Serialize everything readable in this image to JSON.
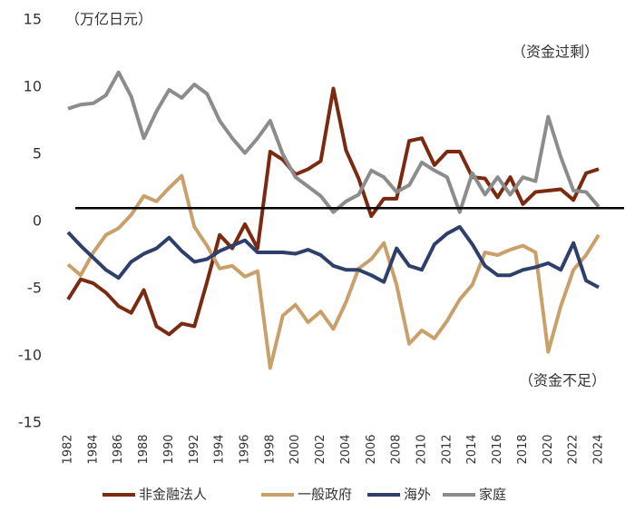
{
  "chart_data": {
    "type": "line",
    "unit_label": "（万亿日元）",
    "annotations": [
      "（资金过剩）",
      "（资金不足）"
    ],
    "x": [
      1982,
      1983,
      1984,
      1985,
      1986,
      1987,
      1988,
      1989,
      1990,
      1991,
      1992,
      1993,
      1994,
      1995,
      1996,
      1997,
      1998,
      1999,
      2000,
      2001,
      2002,
      2003,
      2004,
      2005,
      2006,
      2007,
      2008,
      2009,
      2010,
      2011,
      2012,
      2013,
      2014,
      2015,
      2016,
      2017,
      2018,
      2019,
      2020,
      2021,
      2022,
      2023,
      2024
    ],
    "xlim": [
      1982,
      2024
    ],
    "xticks": [
      1982,
      1984,
      1986,
      1988,
      1990,
      1992,
      1994,
      1996,
      1998,
      2000,
      2002,
      2004,
      2006,
      2008,
      2010,
      2012,
      2014,
      2016,
      2018,
      2020,
      2022,
      2024
    ],
    "ylim": [
      -15,
      15
    ],
    "yticks": [
      -15,
      -10,
      -5,
      0,
      5,
      10,
      15
    ],
    "reference_line": 1,
    "reference_color": "#000000",
    "grid": false,
    "legend": "bottom",
    "series": [
      {
        "name": "非金融法人",
        "color": "#7b2a12",
        "values": [
          -5.8,
          -4.3,
          -4.6,
          -5.3,
          -6.3,
          -6.8,
          -5.1,
          -7.8,
          -8.4,
          -7.6,
          -7.8,
          -4.5,
          -1.0,
          -2.0,
          -0.2,
          -2.0,
          5.2,
          4.6,
          3.5,
          3.9,
          4.5,
          9.9,
          5.3,
          3.2,
          0.4,
          1.7,
          1.7,
          6.0,
          6.2,
          4.2,
          5.2,
          5.2,
          3.3,
          3.2,
          1.8,
          3.3,
          1.3,
          2.2,
          2.3,
          2.4,
          1.6,
          3.6,
          3.9
        ]
      },
      {
        "name": "一般政府",
        "color": "#c9a06a",
        "values": [
          -3.2,
          -4.0,
          -2.3,
          -1.0,
          -0.5,
          0.5,
          1.9,
          1.5,
          2.5,
          3.4,
          -0.4,
          -1.8,
          -3.5,
          -3.3,
          -4.1,
          -3.7,
          -10.9,
          -7.0,
          -6.2,
          -7.5,
          -6.7,
          -8.0,
          -6.0,
          -3.5,
          -2.8,
          -1.6,
          -4.7,
          -9.1,
          -8.1,
          -8.7,
          -7.4,
          -5.8,
          -4.7,
          -2.3,
          -2.5,
          -2.1,
          -1.8,
          -2.3,
          -9.7,
          -6.3,
          -3.6,
          -2.5,
          -1.0
        ]
      },
      {
        "name": "海外",
        "color": "#2e3f6b",
        "values": [
          -0.8,
          -1.8,
          -2.7,
          -3.6,
          -4.2,
          -3.0,
          -2.4,
          -2.0,
          -1.2,
          -2.2,
          -3.0,
          -2.8,
          -2.2,
          -1.8,
          -1.4,
          -2.3,
          -2.3,
          -2.3,
          -2.4,
          -2.1,
          -2.5,
          -3.3,
          -3.6,
          -3.6,
          -4.0,
          -4.5,
          -2.0,
          -3.3,
          -3.6,
          -1.7,
          -0.9,
          -0.4,
          -1.7,
          -3.3,
          -4.0,
          -4.0,
          -3.6,
          -3.4,
          -3.1,
          -3.6,
          -1.6,
          -4.4,
          -4.9
        ]
      },
      {
        "name": "家庭",
        "color": "#8c8c8c",
        "values": [
          8.4,
          8.7,
          8.8,
          9.4,
          11.1,
          9.3,
          6.2,
          8.2,
          9.8,
          9.2,
          10.2,
          9.5,
          7.5,
          6.2,
          5.1,
          6.2,
          7.5,
          5.0,
          3.3,
          2.6,
          1.9,
          0.7,
          1.5,
          2.0,
          3.8,
          3.3,
          2.2,
          2.7,
          4.4,
          3.8,
          3.3,
          0.7,
          3.6,
          2.0,
          3.3,
          2.0,
          3.3,
          3.0,
          7.8,
          4.8,
          2.3,
          2.2,
          1.1
        ]
      }
    ]
  }
}
